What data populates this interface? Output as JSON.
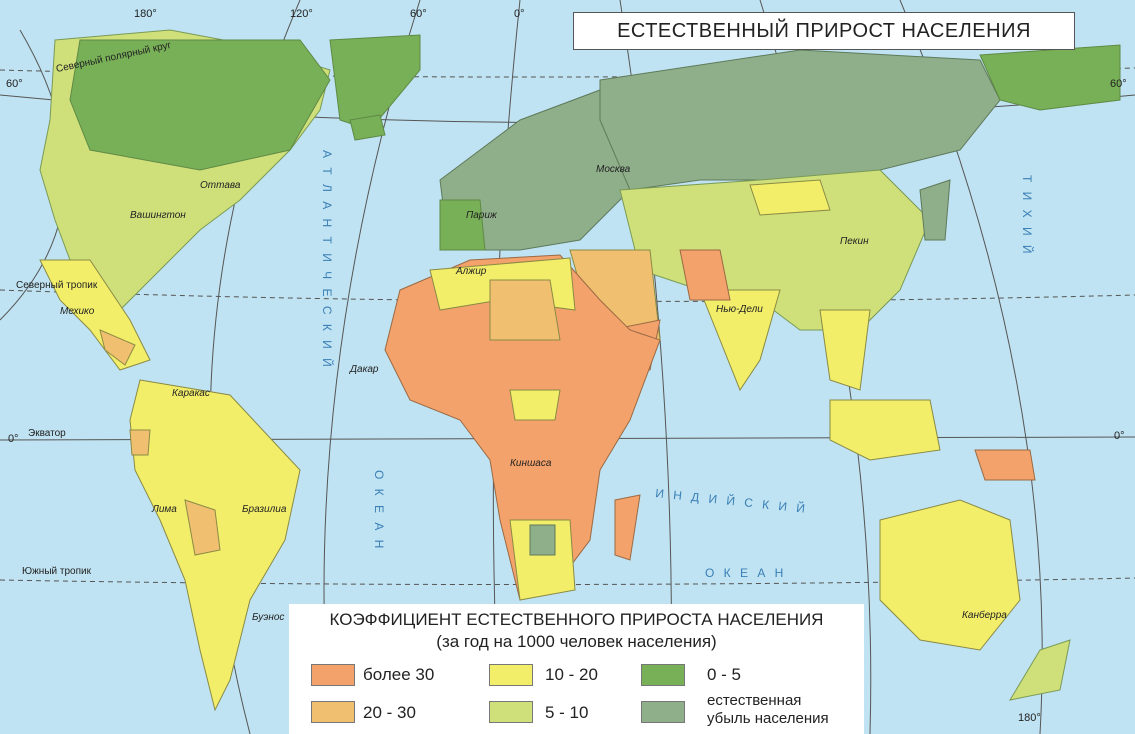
{
  "title": "ЕСТЕСТВЕННЫЙ ПРИРОСТ НАСЕЛЕНИЯ",
  "legend": {
    "title": "КОЭФФИЦИЕНТ ЕСТЕСТВЕННОГО ПРИРОСТА НАСЕЛЕНИЯ",
    "subtitle": "(за год на 1000 человек населения)",
    "items": [
      {
        "label": "более 30",
        "color": "#f3a26b"
      },
      {
        "label": "20 - 30",
        "color": "#f0c070"
      },
      {
        "label": "10 - 20",
        "color": "#f2ee6a"
      },
      {
        "label": "5 - 10",
        "color": "#cfe07a"
      },
      {
        "label": "0 - 5",
        "color": "#78b057"
      },
      {
        "label_line1": "естественная",
        "label_line2": "убыль населения",
        "color": "#8fae8a"
      }
    ]
  },
  "longitudes": [
    "180°",
    "120°",
    "60°",
    "0°",
    "180°"
  ],
  "latitudes": {
    "north60_left": "60°",
    "north60_right": "60°",
    "equator_left": "0°",
    "equator_right": "0°"
  },
  "lines": {
    "arctic_circle": "Северный полярный круг",
    "tropic_cancer": "Северный тропик",
    "equator": "Экватор",
    "tropic_capricorn": "Южный тропик"
  },
  "oceans": {
    "atlantic": "А Т Л А Н Т И Ч Е С К И Й",
    "atlantic_ocean": "О К Е А Н",
    "indian": "И Н Д И Й С К И Й",
    "indian_ocean": "О К Е А Н",
    "pacific": "Т И Х И Й"
  },
  "cities": {
    "ottawa": "Оттава",
    "washington": "Вашингтон",
    "mexico": "Мехико",
    "caracas": "Каракас",
    "lima": "Лима",
    "brasilia": "Бразилиа",
    "buenos": "Буэнос",
    "paris": "Париж",
    "moscow": "Москва",
    "algiers": "Алжир",
    "dakar": "Дакар",
    "kinshasa": "Киншаса",
    "newdelhi": "Нью-Дели",
    "beijing": "Пекин",
    "canberra": "Канберра"
  }
}
